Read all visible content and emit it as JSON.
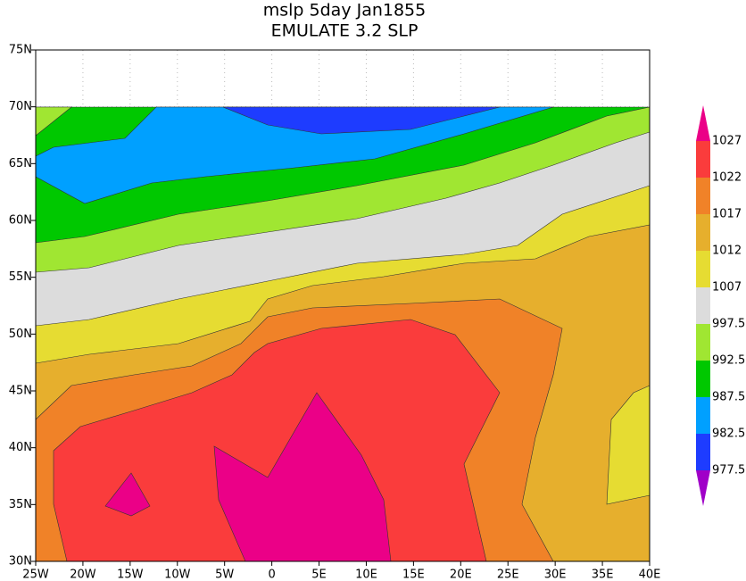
{
  "title": "mslp 5day Jan1855",
  "subtitle": "EMULATE 3.2 SLP",
  "map": {
    "xlim": [
      -25,
      40
    ],
    "ylim": [
      30,
      75
    ],
    "xticks": [
      {
        "value": -25,
        "label": "25W"
      },
      {
        "value": -20,
        "label": "20W"
      },
      {
        "value": -15,
        "label": "15W"
      },
      {
        "value": -10,
        "label": "10W"
      },
      {
        "value": -5,
        "label": "5W"
      },
      0,
      {
        "value": 5,
        "label": "5E"
      },
      {
        "value": 10,
        "label": "10E"
      },
      {
        "value": 15,
        "label": "15E"
      },
      {
        "value": 20,
        "label": "20E"
      },
      {
        "value": 25,
        "label": "25E"
      },
      {
        "value": 30,
        "label": "30E"
      },
      {
        "value": 35,
        "label": "35E"
      },
      {
        "value": 40,
        "label": "40E"
      }
    ],
    "yticks": [
      {
        "value": 30,
        "label": "30N"
      },
      {
        "value": 35,
        "label": "35N"
      },
      {
        "value": 40,
        "label": "40N"
      },
      {
        "value": 45,
        "label": "45N"
      },
      {
        "value": 50,
        "label": "50N"
      },
      {
        "value": 55,
        "label": "55N"
      },
      {
        "value": 60,
        "label": "60N"
      },
      {
        "value": 65,
        "label": "65N"
      },
      {
        "value": 70,
        "label": "70N"
      },
      {
        "value": 75,
        "label": "75N"
      }
    ]
  },
  "colorbar": {
    "levels": [
      977.5,
      982.5,
      987.5,
      992.5,
      997.5,
      1007,
      1012,
      1017,
      1022,
      1027
    ],
    "colors": [
      "#a000c8",
      "#1e3cff",
      "#00a0ff",
      "#00c800",
      "#a0e632",
      "#dcdcdc",
      "#e6dc32",
      "#e6af2d",
      "#f08228",
      "#fa3c3c",
      "#eb0087"
    ]
  }
}
